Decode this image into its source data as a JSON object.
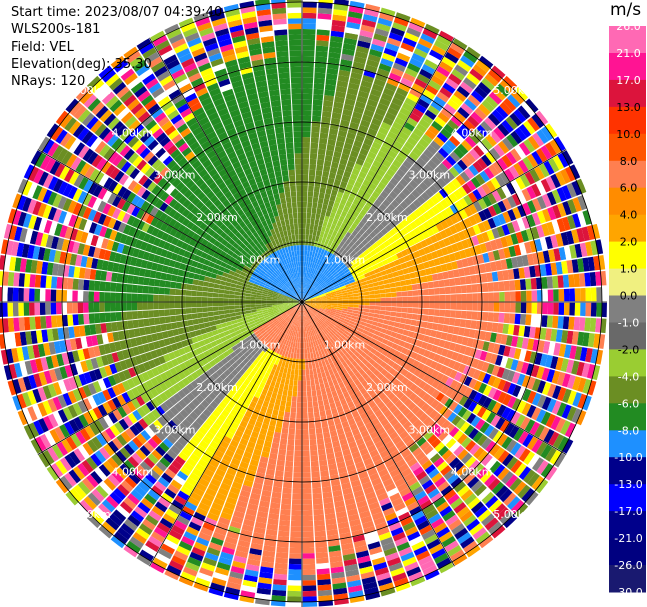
{
  "info": {
    "start_time": "Start time: 2023/08/07 04:39:40",
    "instrument": "WLS200s-181",
    "field": "Field: VEL",
    "elevation": "Elevation(deg): 35.30",
    "nrays": "NRays: 120"
  },
  "chart_data": {
    "type": "heatmap",
    "subtype": "polar-ppi",
    "field": "VEL",
    "units": "m/s",
    "elevation_deg": 35.3,
    "n_rays": 120,
    "range_rings_km": [
      1.0,
      2.0,
      3.0,
      4.0,
      5.0
    ],
    "range_ring_labels": [
      "1.00km",
      "2.00km",
      "3.00km",
      "4.00km",
      "5.00km"
    ],
    "spoke_angles_deg": [
      0,
      30,
      60,
      90,
      120,
      150,
      180,
      210,
      240,
      270,
      300,
      330
    ],
    "colorbar": {
      "label": "m/s",
      "levels": [
        "26.0",
        "21.0",
        "17.0",
        "13.0",
        "10.0",
        "8.0",
        "6.0",
        "4.0",
        "2.0",
        "1.0",
        "0.0",
        "-1.0",
        "-2.0",
        "-4.0",
        "-6.0",
        "-8.0",
        "-10.0",
        "-13.0",
        "-17.0",
        "-21.0",
        "-26.0",
        "-30.0"
      ],
      "colors": [
        "#ff69b4",
        "#ff1493",
        "#dc143c",
        "#ff3300",
        "#ff5500",
        "#ff7f50",
        "#ff8c00",
        "#ffa500",
        "#ffff00",
        "#f0f080",
        "#808080",
        "#696969",
        "#9acd32",
        "#6b8e23",
        "#228b22",
        "#1e90ff",
        "#00008b",
        "#0000ff",
        "#00008b",
        "#000080",
        "#191970",
        "#000033"
      ]
    }
  }
}
